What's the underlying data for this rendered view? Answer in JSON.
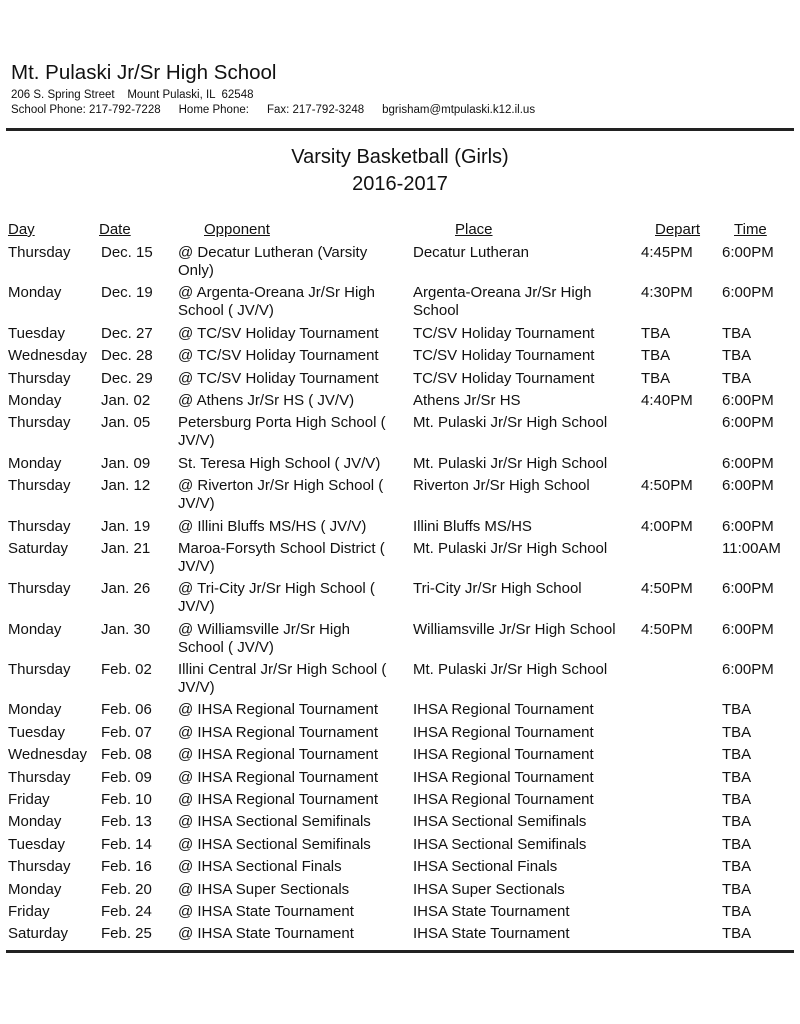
{
  "header": {
    "school": "Mt. Pulaski Jr/Sr High School",
    "address": "206 S. Spring Street    Mount Pulaski, IL  62548",
    "school_phone": "School Phone: 217-792-7228",
    "home_phone": "Home Phone:",
    "fax": "Fax: 217-792-3248",
    "email": "bgrisham@mtpulaski.k12.il.us"
  },
  "title": "Varsity Basketball (Girls)",
  "season": "2016-2017",
  "columns": [
    "Day",
    "Date",
    "Opponent",
    "Place",
    "Depart",
    "Time"
  ],
  "rows": [
    [
      "Thursday",
      "Dec. 15",
      "@ Decatur Lutheran (Varsity\nOnly)",
      "Decatur Lutheran",
      "4:45PM",
      "6:00PM"
    ],
    [
      "Monday",
      "Dec. 19",
      "@ Argenta-Oreana Jr/Sr High\nSchool ( JV/V)",
      "Argenta-Oreana Jr/Sr High\nSchool",
      "4:30PM",
      "6:00PM"
    ],
    [
      "Tuesday",
      "Dec. 27",
      "@ TC/SV Holiday Tournament",
      "TC/SV Holiday Tournament",
      "TBA",
      "TBA"
    ],
    [
      "Wednesday",
      "Dec. 28",
      "@ TC/SV Holiday Tournament",
      "TC/SV Holiday Tournament",
      "TBA",
      "TBA"
    ],
    [
      "Thursday",
      "Dec. 29",
      "@ TC/SV Holiday Tournament",
      "TC/SV Holiday Tournament",
      "TBA",
      "TBA"
    ],
    [
      "Monday",
      "Jan. 02",
      "@ Athens Jr/Sr HS ( JV/V)",
      "Athens Jr/Sr HS",
      "4:40PM",
      "6:00PM"
    ],
    [
      "Thursday",
      "Jan. 05",
      "Petersburg Porta High School (\nJV/V)",
      "Mt. Pulaski Jr/Sr High School",
      "",
      "6:00PM"
    ],
    [
      "Monday",
      "Jan. 09",
      "St. Teresa High School ( JV/V)",
      "Mt. Pulaski Jr/Sr High School",
      "",
      "6:00PM"
    ],
    [
      "Thursday",
      "Jan. 12",
      "@ Riverton Jr/Sr High School (\nJV/V)",
      "Riverton Jr/Sr High School",
      "4:50PM",
      "6:00PM"
    ],
    [
      "Thursday",
      "Jan. 19",
      "@ Illini Bluffs MS/HS ( JV/V)",
      "Illini Bluffs MS/HS",
      "4:00PM",
      "6:00PM"
    ],
    [
      "Saturday",
      "Jan. 21",
      "Maroa-Forsyth School District (\nJV/V)",
      "Mt. Pulaski Jr/Sr High School",
      "",
      "11:00AM"
    ],
    [
      "Thursday",
      "Jan. 26",
      "@ Tri-City Jr/Sr High School (\nJV/V)",
      "Tri-City Jr/Sr High School",
      "4:50PM",
      "6:00PM"
    ],
    [
      "Monday",
      "Jan. 30",
      "@ Williamsville Jr/Sr High\nSchool ( JV/V)",
      "Williamsville Jr/Sr High School",
      "4:50PM",
      "6:00PM"
    ],
    [
      "Thursday",
      "Feb. 02",
      "Illini Central Jr/Sr High School (\nJV/V)",
      "Mt. Pulaski Jr/Sr High School",
      "",
      "6:00PM"
    ],
    [
      "Monday",
      "Feb. 06",
      "@ IHSA Regional Tournament",
      "IHSA Regional Tournament",
      "",
      "TBA"
    ],
    [
      "Tuesday",
      "Feb. 07",
      "@ IHSA Regional Tournament",
      "IHSA Regional Tournament",
      "",
      "TBA"
    ],
    [
      "Wednesday",
      "Feb. 08",
      "@ IHSA Regional Tournament",
      "IHSA Regional Tournament",
      "",
      "TBA"
    ],
    [
      "Thursday",
      "Feb. 09",
      "@ IHSA Regional Tournament",
      "IHSA Regional Tournament",
      "",
      "TBA"
    ],
    [
      "Friday",
      "Feb. 10",
      "@ IHSA Regional Tournament",
      "IHSA Regional Tournament",
      "",
      "TBA"
    ],
    [
      "Monday",
      "Feb. 13",
      "@ IHSA Sectional Semifinals",
      "IHSA Sectional Semifinals",
      "",
      "TBA"
    ],
    [
      "Tuesday",
      "Feb. 14",
      "@ IHSA Sectional Semifinals",
      "IHSA Sectional Semifinals",
      "",
      "TBA"
    ],
    [
      "Thursday",
      "Feb. 16",
      "@ IHSA Sectional Finals",
      "IHSA Sectional Finals",
      "",
      "TBA"
    ],
    [
      "Monday",
      "Feb. 20",
      "@ IHSA Super Sectionals",
      "IHSA Super Sectionals",
      "",
      "TBA"
    ],
    [
      "Friday",
      "Feb. 24",
      "@ IHSA State Tournament",
      "IHSA State Tournament",
      "",
      "TBA"
    ],
    [
      "Saturday",
      "Feb. 25",
      "@ IHSA State Tournament",
      "IHSA State Tournament",
      "",
      "TBA"
    ]
  ]
}
